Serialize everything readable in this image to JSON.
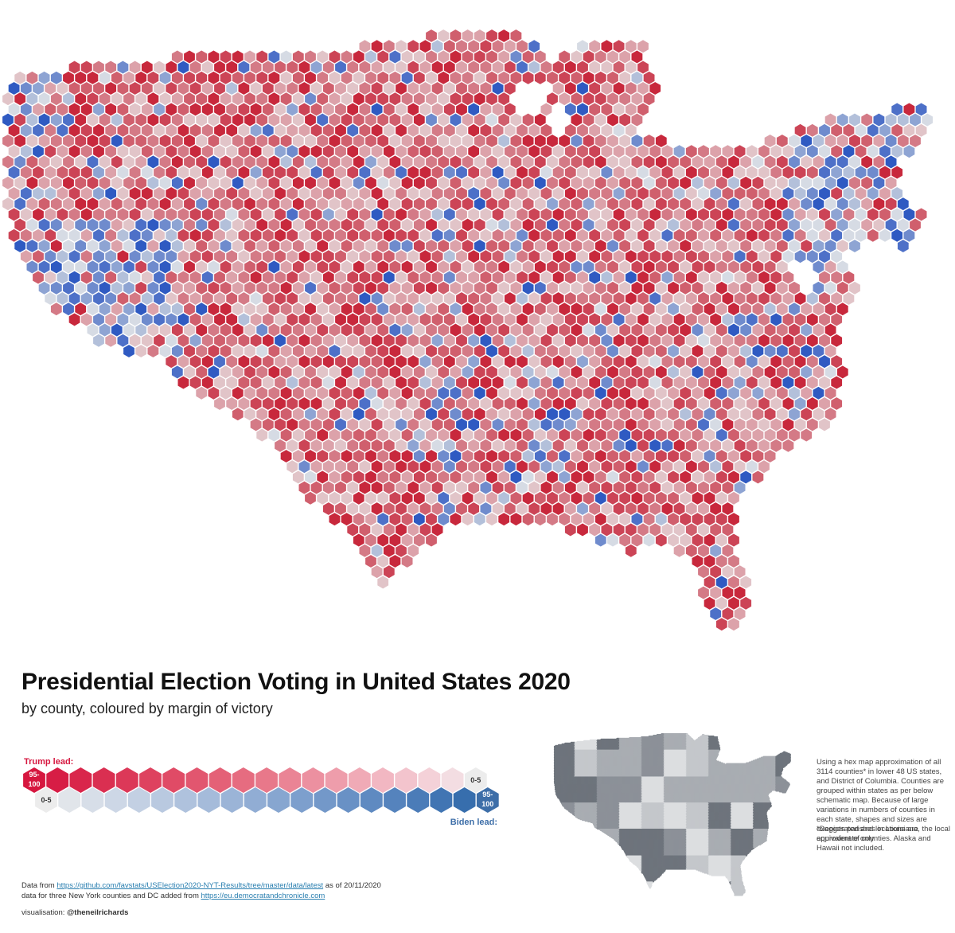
{
  "header": {
    "title": "Presidential Election Voting in United States 2020",
    "subtitle": "by county, coloured by margin of victory"
  },
  "legend": {
    "trump_label": "Trump lead:",
    "biden_label": "Biden lead:",
    "trump_max": [
      "95-",
      "100"
    ],
    "trump_min": "0-5",
    "biden_min": "0-5",
    "biden_max": [
      "95-",
      "100"
    ],
    "trump_colors": [
      "#d6173f",
      "#d71d45",
      "#d9264b",
      "#da2f51",
      "#dc3858",
      "#de425f",
      "#e04b66",
      "#e2566f",
      "#e46177",
      "#e66c80",
      "#e8788a",
      "#ea8495",
      "#ec90a0",
      "#ee9dab",
      "#f0aab6",
      "#f2b7c2",
      "#f3c4cd",
      "#f4d1d8",
      "#f3dde2"
    ],
    "biden_colors": [
      "#ececec",
      "#e1e5ea",
      "#d7dee8",
      "#cdd7e6",
      "#c3d0e3",
      "#b9c9e0",
      "#afc2dd",
      "#a5bbda",
      "#9bb4d7",
      "#91add4",
      "#87a6d0",
      "#7d9fcd",
      "#7398c9",
      "#6991c5",
      "#5f8ac1",
      "#5583bd",
      "#4b7cb8",
      "#4175b3",
      "#376ead",
      "#3d6ea8"
    ]
  },
  "map": {
    "palette_red": [
      "#c8283c",
      "#cc4456",
      "#d05f6d",
      "#d47a86",
      "#dca2aa",
      "#e1c4c8"
    ],
    "palette_blue": [
      "#d6dbe4",
      "#b3c0da",
      "#8ea4d3",
      "#6f8bcd",
      "#4d70c8",
      "#2f5ac2"
    ],
    "palette_grey": [
      "#6e747c",
      "#8c9198",
      "#a9adb2",
      "#c4c7cb",
      "#dcdee0"
    ]
  },
  "notes": {
    "description": "Using a hex map approximation of all 3114 counties* in lower 48 US states, and District of Columbia. Counties are grouped within states as per below schematic map. Because of large variations in numbers of counties in each state, shapes and sizes are exaggerated and locations are approximate only.",
    "footnote": "*Depicts parishes in Louisiana, the local equivalent of counties. Alaska and Hawaii not included."
  },
  "footer": {
    "data_prefix": "Data from",
    "data_url": "https://github.com/favstats/USElection2020-NYT-Results/tree/master/data/latest",
    "data_suffix": "as of 20/11/2020",
    "extra_prefix": "data for three New York counties and DC added from",
    "extra_url": "https://eu.democratandchronicle.com",
    "credit_prefix": "visualisation:",
    "credit_name": "@theneilrichards"
  }
}
